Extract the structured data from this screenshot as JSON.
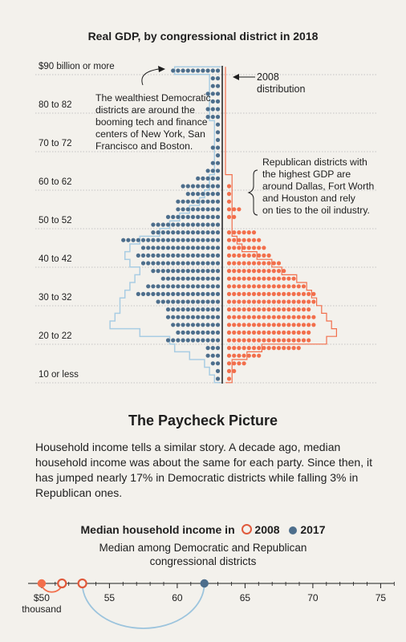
{
  "gdp_chart": {
    "title": "Real GDP, by congressional district in 2018",
    "annotations": {
      "dem": [
        "The wealthiest Democratic",
        "districts are around the",
        "booming tech and finance",
        "centers of New York, San",
        "Francisco and Boston."
      ],
      "rep": [
        "Republican districts with",
        "the highest GDP are",
        "around Dallas, Fort Worth",
        "and Houston and rely",
        "on ties to the oil industry."
      ],
      "legend_2008": [
        "2008",
        "distribution"
      ]
    }
  },
  "paycheck": {
    "title": "The Paycheck Picture",
    "body": "Household income tells a similar story. A decade ago, median household income was about the same for each party. Since then, it has jumped nearly 17% in Democratic districts while falling 3% in Republican ones."
  },
  "income_chart": {
    "title_prefix": "Median household income in",
    "legend_2008": "2008",
    "legend_2017": "2017",
    "subtitle_line1": "Median among Democratic and Republican",
    "subtitle_line2": "congressional districts",
    "first_tick_line1": "$50",
    "first_tick_line2": "thousand"
  },
  "chart_data": [
    {
      "type": "bar",
      "orientation": "horizontal",
      "title": "Real GDP, by congressional district in 2018",
      "tick_labels": [
        "$90 billion or more",
        "80 to 82",
        "70 to 72",
        "60 to 62",
        "50 to 52",
        "40 to 42",
        "30 to 32",
        "20 to 22",
        "10 or less"
      ],
      "ytick_values": [
        90,
        80,
        70,
        60,
        50,
        40,
        30,
        20,
        10
      ],
      "y": [
        90,
        88,
        86,
        84,
        82,
        80,
        78,
        76,
        74,
        72,
        70,
        68,
        66,
        64,
        62,
        60,
        58,
        56,
        54,
        52,
        50,
        48,
        46,
        44,
        42,
        40,
        38,
        36,
        34,
        32,
        30,
        28,
        26,
        24,
        22,
        20,
        18,
        16,
        14,
        12,
        10
      ],
      "series": [
        {
          "name": "Democratic",
          "color": "#4d6e8c",
          "values": [
            10,
            2,
            2,
            3,
            2,
            3,
            3,
            1,
            1,
            1,
            2,
            1,
            2,
            3,
            5,
            8,
            7,
            9,
            9,
            11,
            14,
            14,
            20,
            16,
            17,
            16,
            14,
            12,
            15,
            17,
            13,
            11,
            11,
            10,
            9,
            11,
            3,
            3,
            2,
            1,
            1
          ]
        },
        {
          "name": "Republican",
          "color": "#f26f4c",
          "values": [
            0,
            0,
            0,
            0,
            0,
            0,
            0,
            0,
            0,
            0,
            0,
            0,
            0,
            0,
            0,
            1,
            1,
            1,
            3,
            2,
            0,
            6,
            7,
            8,
            9,
            11,
            12,
            14,
            16,
            18,
            18,
            17,
            18,
            18,
            17,
            17,
            15,
            7,
            4,
            2,
            1
          ]
        },
        {
          "name": "2008 distribution",
          "color": "#a9cde3",
          "outline": true,
          "dem_values": [
            9,
            2,
            2,
            2,
            2,
            2,
            2,
            1,
            1,
            1,
            1,
            1,
            1,
            1,
            2,
            2,
            3,
            4,
            6,
            8,
            10,
            12,
            16,
            18,
            19,
            18,
            16,
            17,
            18,
            19,
            20,
            20,
            21,
            22,
            16,
            10,
            9,
            6,
            3,
            2,
            1
          ],
          "rep_values": [
            0,
            0,
            0,
            0,
            0,
            0,
            0,
            0,
            0,
            0,
            0,
            0,
            0,
            0,
            1,
            1,
            1,
            1,
            1,
            1,
            1,
            1,
            2,
            3,
            6,
            9,
            11,
            14,
            16,
            17,
            18,
            19,
            20,
            21,
            22,
            20,
            7,
            4,
            1,
            1,
            1
          ]
        }
      ]
    },
    {
      "type": "dot-plot",
      "title": "Median household income in 2008 2017",
      "subtitle": "Median among Democratic and Republican congressional districts",
      "x_ticks": [
        50,
        55,
        60,
        65,
        70,
        75
      ],
      "xlim": [
        49,
        76
      ],
      "series": [
        {
          "name": "Republican",
          "color": "#f26f4c",
          "value_2008": 51.5,
          "value_2017": 50.0
        },
        {
          "name": "Democratic",
          "color": "#4d6e8c",
          "value_2008": 53.0,
          "value_2017": 62.0
        }
      ]
    }
  ]
}
